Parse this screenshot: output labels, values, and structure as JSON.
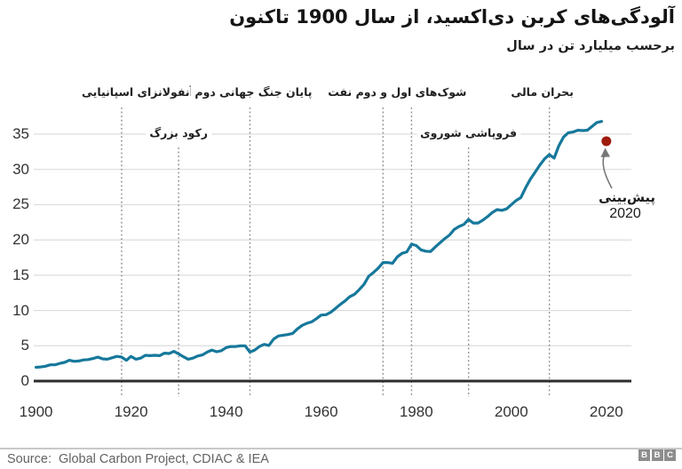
{
  "header": {
    "title": "آلودگی‌های کربن دی‌اکسید، از سال 1900 تاکنون",
    "subtitle": "برحسب میلیارد تن در سال"
  },
  "footer": {
    "source_label": "Source:",
    "source_value": "Global Carbon Project, CDIAC & IEA",
    "logo_letters": [
      "B",
      "B",
      "C"
    ]
  },
  "colors": {
    "line": "#16789b",
    "forecast_dot": "#9e1b0e",
    "gridline": "#dcdcdc",
    "axis": "#2c2c2c",
    "event_line": "#8c8c8c",
    "arrow": "#777777",
    "tick_text": "#333333"
  },
  "chart_data": {
    "type": "line",
    "title": "آلودگی‌های کربن دی‌اکسید، از سال 1900 تاکنون",
    "subtitle_unit": "برحسب میلیارد تن در سال",
    "xlabel": "",
    "ylabel": "میلیارد تن در سال",
    "xlim": [
      1900,
      2025
    ],
    "ylim": [
      0,
      37.5
    ],
    "grid": "horizontal",
    "x_start": 1900,
    "x_end": 2019,
    "values": [
      1.95,
      2.0,
      2.1,
      2.3,
      2.3,
      2.5,
      2.65,
      2.95,
      2.8,
      2.85,
      3.0,
      3.05,
      3.2,
      3.4,
      3.15,
      3.1,
      3.3,
      3.5,
      3.4,
      2.95,
      3.5,
      3.1,
      3.25,
      3.65,
      3.6,
      3.65,
      3.6,
      3.95,
      3.9,
      4.2,
      3.85,
      3.45,
      3.1,
      3.25,
      3.55,
      3.7,
      4.1,
      4.4,
      4.15,
      4.3,
      4.75,
      4.9,
      4.9,
      5.0,
      5.0,
      4.1,
      4.4,
      4.9,
      5.2,
      5.05,
      5.95,
      6.4,
      6.5,
      6.6,
      6.75,
      7.4,
      7.9,
      8.2,
      8.4,
      8.85,
      9.35,
      9.4,
      9.75,
      10.3,
      10.85,
      11.35,
      11.95,
      12.3,
      12.95,
      13.7,
      14.85,
      15.4,
      16.0,
      16.8,
      16.8,
      16.7,
      17.6,
      18.1,
      18.3,
      19.4,
      19.2,
      18.6,
      18.4,
      18.35,
      19.0,
      19.6,
      20.2,
      20.7,
      21.5,
      21.9,
      22.2,
      22.9,
      22.4,
      22.4,
      22.8,
      23.3,
      23.9,
      24.3,
      24.2,
      24.4,
      25.0,
      25.6,
      26.0,
      27.4,
      28.6,
      29.6,
      30.6,
      31.5,
      32.1,
      31.6,
      33.35,
      34.6,
      35.2,
      35.3,
      35.55,
      35.5,
      35.55,
      36.1,
      36.65,
      36.8
    ],
    "y_ticks": [
      0,
      5,
      10,
      15,
      20,
      25,
      30,
      35
    ],
    "x_ticks": [
      1900,
      1920,
      1940,
      1960,
      1980,
      2000,
      2020
    ],
    "events": [
      {
        "label": "آنفولانزای اسپانیایی",
        "years": [
          1918
        ],
        "row": 1
      },
      {
        "label": "رکود بزرگ",
        "years": [
          1930
        ],
        "row": 2
      },
      {
        "label": "پایان جنگ جهانی دوم",
        "years": [
          1945
        ],
        "row": 1
      },
      {
        "label": "شوک‌های اول و دوم نفت",
        "years": [
          1973,
          1979
        ],
        "row": 1
      },
      {
        "label": "فروپاشی شوروی",
        "years": [
          1991
        ],
        "row": 2
      },
      {
        "label": "بحران مالی",
        "years": [
          2008
        ],
        "row": 1
      }
    ],
    "forecast": {
      "label": "پیش‌بینی",
      "year_text": "2020",
      "year": 2020,
      "value": 34.0
    }
  }
}
